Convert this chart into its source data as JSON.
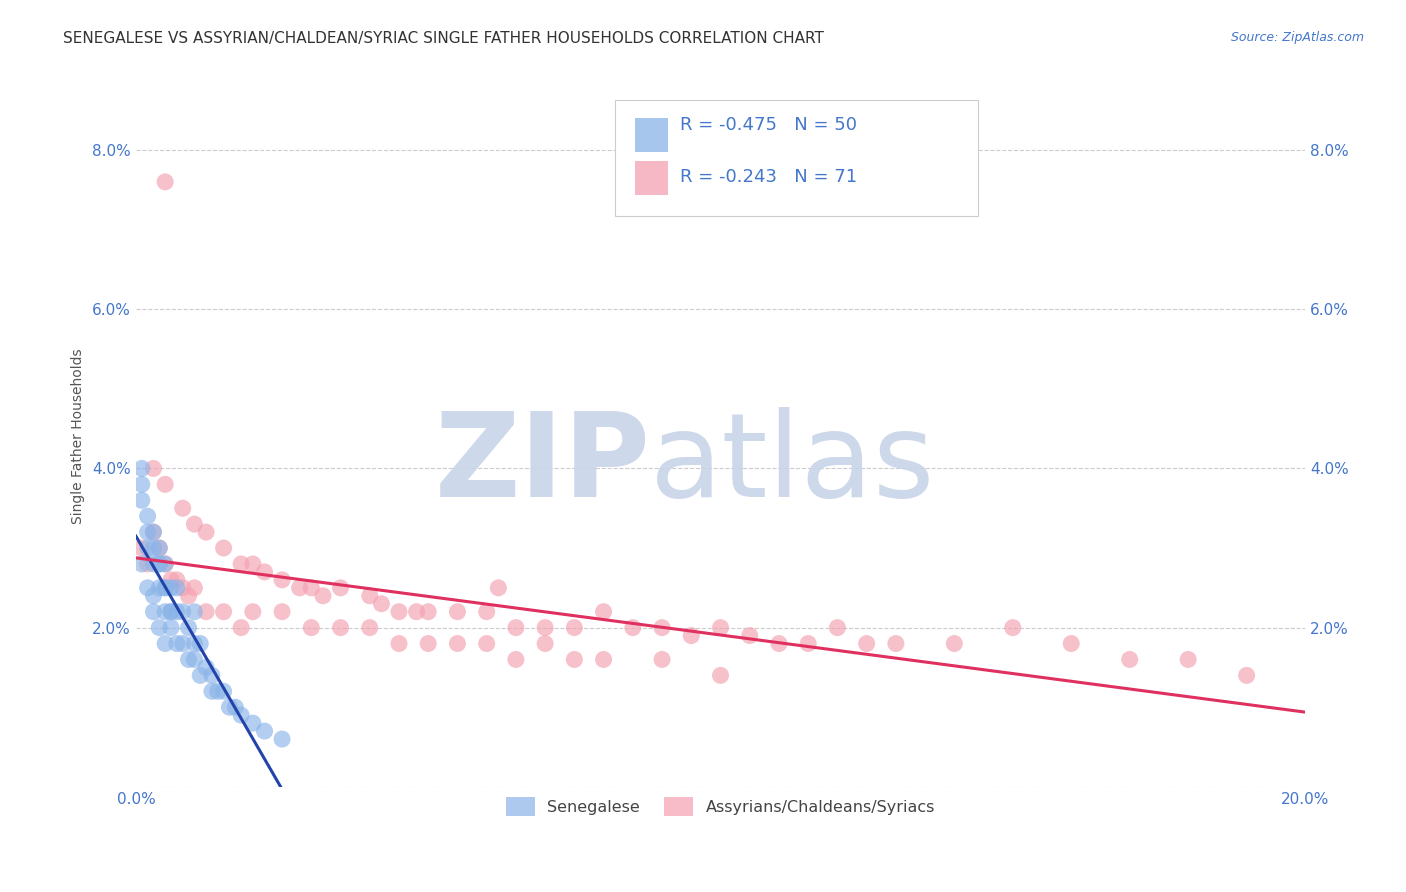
{
  "title": "SENEGALESE VS ASSYRIAN/CHALDEAN/SYRIAC SINGLE FATHER HOUSEHOLDS CORRELATION CHART",
  "source": "Source: ZipAtlas.com",
  "ylabel": "Single Father Households",
  "xlim": [
    0.0,
    0.2
  ],
  "ylim": [
    0.0,
    0.088
  ],
  "xticks": [
    0.0,
    0.05,
    0.1,
    0.15,
    0.2
  ],
  "xtick_labels": [
    "0.0%",
    "",
    "",
    "",
    "20.0%"
  ],
  "yticks": [
    0.0,
    0.02,
    0.04,
    0.06,
    0.08
  ],
  "ytick_labels": [
    "",
    "2.0%",
    "4.0%",
    "6.0%",
    "8.0%"
  ],
  "grid_color": "#cccccc",
  "background_color": "#ffffff",
  "watermark_zip": "ZIP",
  "watermark_atlas": "atlas",
  "watermark_color": "#c8d4e8",
  "blue_color": "#8ab4e8",
  "pink_color": "#f4a0b0",
  "blue_line_color": "#2244aa",
  "pink_line_color": "#e03060",
  "tick_color": "#4477cc",
  "title_fontsize": 11,
  "axis_label_fontsize": 10,
  "tick_fontsize": 11,
  "legend_label1": "Senegalese",
  "legend_label2": "Assyrians/Chaldeans/Syriacs",
  "blue_scatter_x": [
    0.001,
    0.001,
    0.001,
    0.002,
    0.002,
    0.002,
    0.003,
    0.003,
    0.003,
    0.003,
    0.004,
    0.004,
    0.004,
    0.004,
    0.005,
    0.005,
    0.005,
    0.005,
    0.006,
    0.006,
    0.006,
    0.007,
    0.007,
    0.007,
    0.008,
    0.008,
    0.009,
    0.009,
    0.01,
    0.01,
    0.01,
    0.011,
    0.011,
    0.012,
    0.013,
    0.013,
    0.014,
    0.015,
    0.016,
    0.017,
    0.018,
    0.02,
    0.022,
    0.025,
    0.001,
    0.002,
    0.003,
    0.004,
    0.005,
    0.006
  ],
  "blue_scatter_y": [
    0.04,
    0.036,
    0.028,
    0.034,
    0.03,
    0.025,
    0.032,
    0.028,
    0.024,
    0.022,
    0.03,
    0.028,
    0.025,
    0.02,
    0.028,
    0.025,
    0.022,
    0.018,
    0.025,
    0.022,
    0.02,
    0.025,
    0.022,
    0.018,
    0.022,
    0.018,
    0.02,
    0.016,
    0.022,
    0.018,
    0.016,
    0.018,
    0.014,
    0.015,
    0.014,
    0.012,
    0.012,
    0.012,
    0.01,
    0.01,
    0.009,
    0.008,
    0.007,
    0.006,
    0.038,
    0.032,
    0.03,
    0.028,
    0.025,
    0.022
  ],
  "pink_scatter_x": [
    0.003,
    0.005,
    0.008,
    0.01,
    0.012,
    0.015,
    0.018,
    0.02,
    0.022,
    0.025,
    0.028,
    0.03,
    0.032,
    0.035,
    0.04,
    0.042,
    0.045,
    0.048,
    0.05,
    0.055,
    0.06,
    0.062,
    0.065,
    0.07,
    0.075,
    0.08,
    0.085,
    0.09,
    0.095,
    0.1,
    0.105,
    0.11,
    0.115,
    0.12,
    0.125,
    0.13,
    0.14,
    0.15,
    0.16,
    0.17,
    0.18,
    0.19,
    0.001,
    0.002,
    0.003,
    0.004,
    0.005,
    0.006,
    0.007,
    0.008,
    0.009,
    0.01,
    0.012,
    0.015,
    0.018,
    0.02,
    0.025,
    0.03,
    0.035,
    0.04,
    0.045,
    0.05,
    0.055,
    0.06,
    0.065,
    0.07,
    0.075,
    0.08,
    0.09,
    0.1,
    0.005
  ],
  "pink_scatter_y": [
    0.04,
    0.038,
    0.035,
    0.033,
    0.032,
    0.03,
    0.028,
    0.028,
    0.027,
    0.026,
    0.025,
    0.025,
    0.024,
    0.025,
    0.024,
    0.023,
    0.022,
    0.022,
    0.022,
    0.022,
    0.022,
    0.025,
    0.02,
    0.02,
    0.02,
    0.022,
    0.02,
    0.02,
    0.019,
    0.02,
    0.019,
    0.018,
    0.018,
    0.02,
    0.018,
    0.018,
    0.018,
    0.02,
    0.018,
    0.016,
    0.016,
    0.014,
    0.03,
    0.028,
    0.032,
    0.03,
    0.028,
    0.026,
    0.026,
    0.025,
    0.024,
    0.025,
    0.022,
    0.022,
    0.02,
    0.022,
    0.022,
    0.02,
    0.02,
    0.02,
    0.018,
    0.018,
    0.018,
    0.018,
    0.016,
    0.018,
    0.016,
    0.016,
    0.016,
    0.014,
    0.076
  ]
}
